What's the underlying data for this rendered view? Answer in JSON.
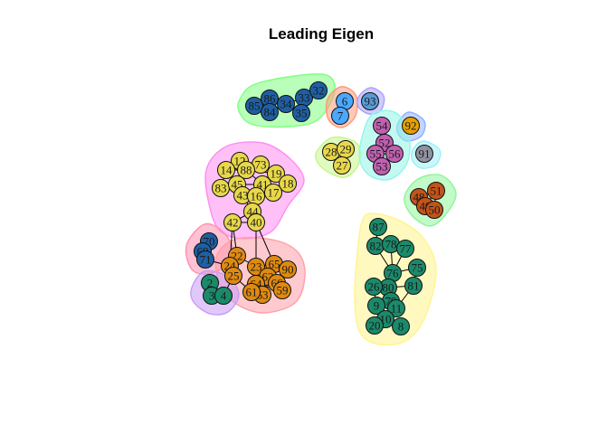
{
  "title": "Leading Eigen",
  "community_colors": {
    "c1": "#1f5fa3",
    "c2": "#4aa8ff",
    "c3": "#5b9bd5",
    "c4": "#e6a000",
    "c5": "#c060b0",
    "c6": "#8f93a0",
    "c7": "#e8d84a",
    "c8": "#c2541a",
    "c9": "#1b8a6b",
    "c10": "#e08a10",
    "c11": "#1b8a6b"
  },
  "hull_colors": {
    "h1": "#7fff7f",
    "h2": "#ff9a7a",
    "h3": "#a9a0ff",
    "h4": "#8fb0ff",
    "h5": "#c8f58a",
    "h6": "#8ff6e8",
    "h7": "#9af0f8",
    "h8": "#ff8cf0",
    "h9": "#ff8fb0",
    "h10": "#ff9fa8",
    "h11": "#c89af8",
    "h12": "#fff48a",
    "h13": "#8ff59a"
  },
  "nodes": [
    {
      "id": "85",
      "c": "c1"
    },
    {
      "id": "86",
      "c": "c1"
    },
    {
      "id": "84",
      "c": "c1"
    },
    {
      "id": "34",
      "c": "c1"
    },
    {
      "id": "33",
      "c": "c1"
    },
    {
      "id": "35",
      "c": "c1"
    },
    {
      "id": "32",
      "c": "c1"
    },
    {
      "id": "6",
      "c": "c2"
    },
    {
      "id": "7",
      "c": "c2"
    },
    {
      "id": "93",
      "c": "c3"
    },
    {
      "id": "54",
      "c": "c5"
    },
    {
      "id": "92",
      "c": "c4"
    },
    {
      "id": "52",
      "c": "c5"
    },
    {
      "id": "55",
      "c": "c5"
    },
    {
      "id": "56",
      "c": "c5"
    },
    {
      "id": "53",
      "c": "c5"
    },
    {
      "id": "91",
      "c": "c6"
    },
    {
      "id": "28",
      "c": "c7"
    },
    {
      "id": "29",
      "c": "c7"
    },
    {
      "id": "27",
      "c": "c7"
    },
    {
      "id": "12",
      "c": "c7"
    },
    {
      "id": "73",
      "c": "c7"
    },
    {
      "id": "14",
      "c": "c7"
    },
    {
      "id": "88",
      "c": "c7"
    },
    {
      "id": "19",
      "c": "c7"
    },
    {
      "id": "18",
      "c": "c7"
    },
    {
      "id": "83",
      "c": "c7"
    },
    {
      "id": "45",
      "c": "c7"
    },
    {
      "id": "41",
      "c": "c7"
    },
    {
      "id": "17",
      "c": "c7"
    },
    {
      "id": "43",
      "c": "c7"
    },
    {
      "id": "16",
      "c": "c7"
    },
    {
      "id": "44",
      "c": "c7"
    },
    {
      "id": "42",
      "c": "c7"
    },
    {
      "id": "40",
      "c": "c7"
    },
    {
      "id": "48",
      "c": "c8"
    },
    {
      "id": "51",
      "c": "c8"
    },
    {
      "id": "49",
      "c": "c8"
    },
    {
      "id": "50",
      "c": "c8"
    },
    {
      "id": "87",
      "c": "c9"
    },
    {
      "id": "82",
      "c": "c9"
    },
    {
      "id": "78",
      "c": "c9"
    },
    {
      "id": "77",
      "c": "c9"
    },
    {
      "id": "75",
      "c": "c9"
    },
    {
      "id": "76",
      "c": "c9"
    },
    {
      "id": "80",
      "c": "c9"
    },
    {
      "id": "81",
      "c": "c9"
    },
    {
      "id": "79",
      "c": "c9"
    },
    {
      "id": "9",
      "c": "c9"
    },
    {
      "id": "11",
      "c": "c9"
    },
    {
      "id": "10",
      "c": "c9"
    },
    {
      "id": "20",
      "c": "c9"
    },
    {
      "id": "8",
      "c": "c9"
    },
    {
      "id": "26",
      "c": "c9"
    },
    {
      "id": "70",
      "c": "c1"
    },
    {
      "id": "69",
      "c": "c1"
    },
    {
      "id": "71",
      "c": "c1"
    },
    {
      "id": "22",
      "c": "c10"
    },
    {
      "id": "24",
      "c": "c10"
    },
    {
      "id": "25",
      "c": "c10"
    },
    {
      "id": "23",
      "c": "c10"
    },
    {
      "id": "65",
      "c": "c10"
    },
    {
      "id": "90",
      "c": "c10"
    },
    {
      "id": "62",
      "c": "c10"
    },
    {
      "id": "66",
      "c": "c10"
    },
    {
      "id": "59",
      "c": "c10"
    },
    {
      "id": "64",
      "c": "c10"
    },
    {
      "id": "63",
      "c": "c10"
    },
    {
      "id": "61",
      "c": "c10"
    },
    {
      "id": "2",
      "c": "c11"
    },
    {
      "id": "3",
      "c": "c11"
    },
    {
      "id": "4",
      "c": "c11"
    }
  ]
}
